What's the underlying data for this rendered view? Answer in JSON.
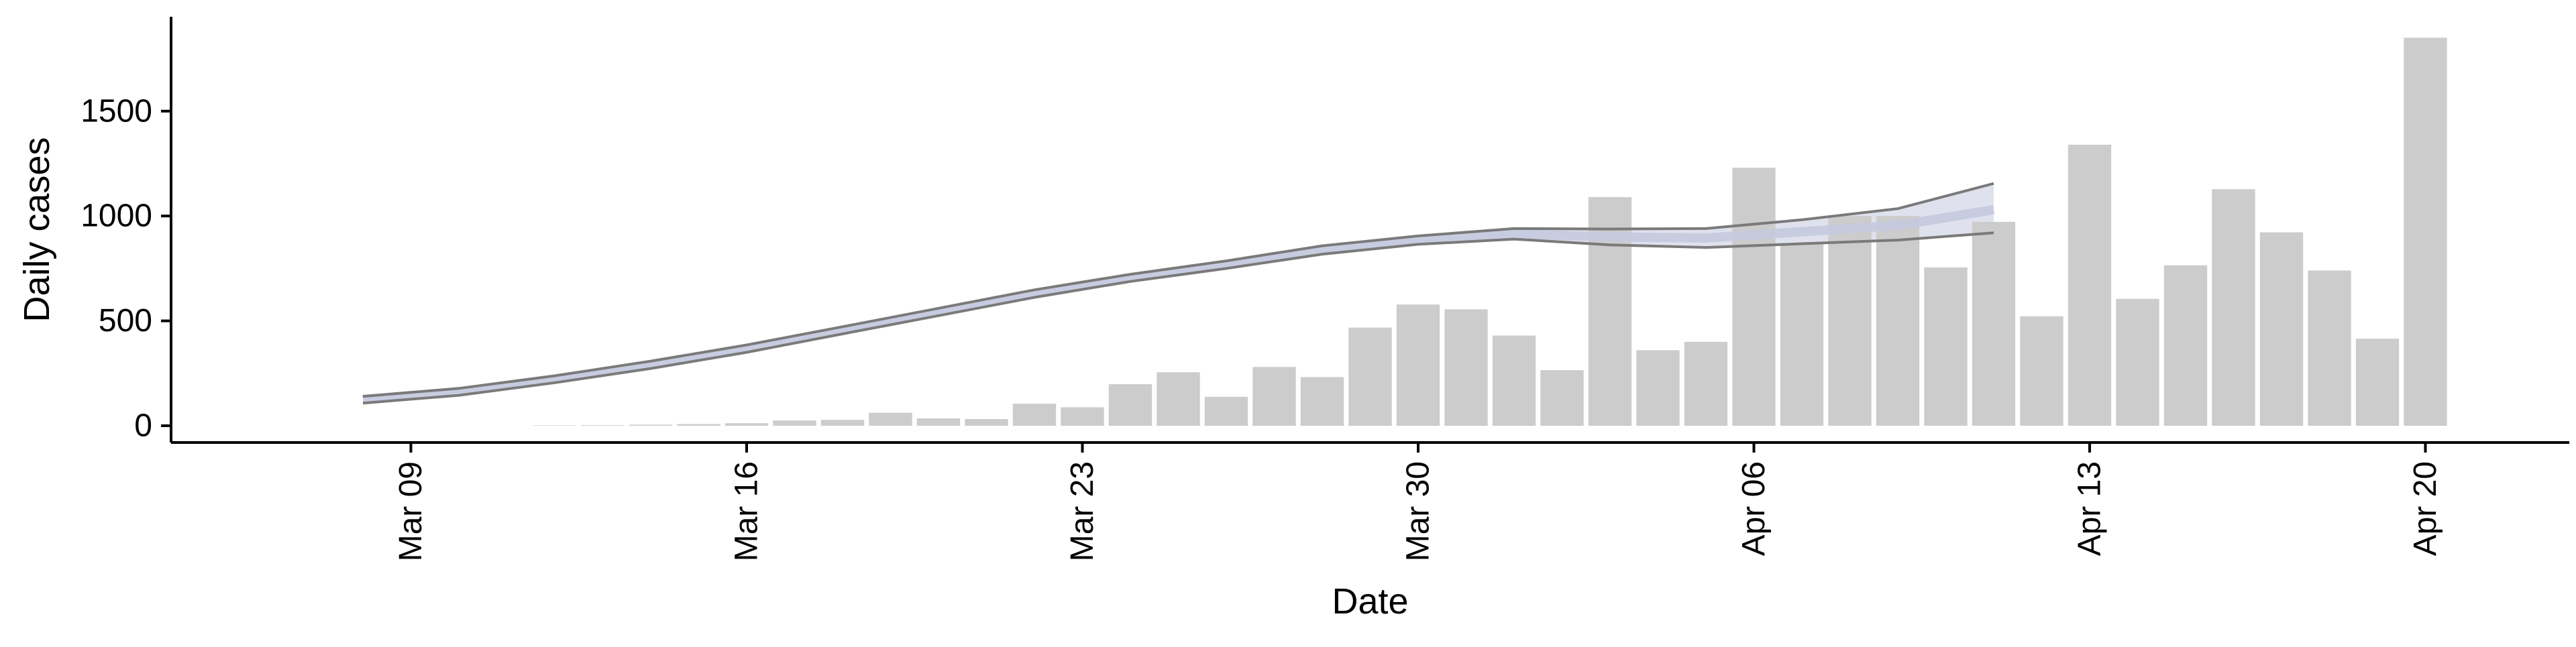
{
  "chart_data": {
    "type": "bar",
    "xlabel": "Date",
    "ylabel": "Daily cases",
    "x_axis": {
      "type": "date",
      "range": [
        "2020-03-04",
        "2020-04-23"
      ],
      "ticks": [
        {
          "date": "2020-03-09",
          "label": "Mar 09"
        },
        {
          "date": "2020-03-16",
          "label": "Mar 16"
        },
        {
          "date": "2020-03-23",
          "label": "Mar 23"
        },
        {
          "date": "2020-03-30",
          "label": "Mar 30"
        },
        {
          "date": "2020-04-06",
          "label": "Apr 06"
        },
        {
          "date": "2020-04-13",
          "label": "Apr 13"
        },
        {
          "date": "2020-04-20",
          "label": "Apr 20"
        }
      ]
    },
    "y_axis": {
      "range": [
        -80,
        1950
      ],
      "ticks": [
        {
          "value": 0,
          "label": "0"
        },
        {
          "value": 500,
          "label": "500"
        },
        {
          "value": 1000,
          "label": "1000"
        },
        {
          "value": 1500,
          "label": "1500"
        }
      ]
    },
    "grid": false,
    "bars": {
      "color": "#cccccc",
      "data": [
        {
          "date": "2020-03-12",
          "value": 2
        },
        {
          "date": "2020-03-13",
          "value": 3
        },
        {
          "date": "2020-03-14",
          "value": 5
        },
        {
          "date": "2020-03-15",
          "value": 8
        },
        {
          "date": "2020-03-16",
          "value": 12
        },
        {
          "date": "2020-03-17",
          "value": 25
        },
        {
          "date": "2020-03-18",
          "value": 28
        },
        {
          "date": "2020-03-19",
          "value": 62
        },
        {
          "date": "2020-03-20",
          "value": 35
        },
        {
          "date": "2020-03-21",
          "value": 32
        },
        {
          "date": "2020-03-22",
          "value": 105
        },
        {
          "date": "2020-03-23",
          "value": 88
        },
        {
          "date": "2020-03-24",
          "value": 198
        },
        {
          "date": "2020-03-25",
          "value": 255
        },
        {
          "date": "2020-03-26",
          "value": 138
        },
        {
          "date": "2020-03-27",
          "value": 280
        },
        {
          "date": "2020-03-28",
          "value": 232
        },
        {
          "date": "2020-03-29",
          "value": 468
        },
        {
          "date": "2020-03-30",
          "value": 578
        },
        {
          "date": "2020-03-31",
          "value": 555
        },
        {
          "date": "2020-04-01",
          "value": 430
        },
        {
          "date": "2020-04-02",
          "value": 265
        },
        {
          "date": "2020-04-03",
          "value": 1090
        },
        {
          "date": "2020-04-04",
          "value": 360
        },
        {
          "date": "2020-04-05",
          "value": 400
        },
        {
          "date": "2020-04-06",
          "value": 1230
        },
        {
          "date": "2020-04-07",
          "value": 870
        },
        {
          "date": "2020-04-08",
          "value": 1000
        },
        {
          "date": "2020-04-09",
          "value": 1000
        },
        {
          "date": "2020-04-10",
          "value": 755
        },
        {
          "date": "2020-04-11",
          "value": 972
        },
        {
          "date": "2020-04-12",
          "value": 522
        },
        {
          "date": "2020-04-13",
          "value": 1340
        },
        {
          "date": "2020-04-14",
          "value": 605
        },
        {
          "date": "2020-04-15",
          "value": 765
        },
        {
          "date": "2020-04-16",
          "value": 1128
        },
        {
          "date": "2020-04-17",
          "value": 922
        },
        {
          "date": "2020-04-18",
          "value": 740
        },
        {
          "date": "2020-04-19",
          "value": 415
        },
        {
          "date": "2020-04-20",
          "value": 1850
        }
      ]
    },
    "trend": {
      "line_color": "#7a7a7a",
      "band_color": "#c5cade",
      "points": [
        {
          "date": "2020-03-08",
          "mid": 125,
          "lower": 108,
          "upper": 140
        },
        {
          "date": "2020-03-10",
          "mid": 162,
          "lower": 145,
          "upper": 178
        },
        {
          "date": "2020-03-12",
          "mid": 222,
          "lower": 205,
          "upper": 238
        },
        {
          "date": "2020-03-14",
          "mid": 290,
          "lower": 273,
          "upper": 308
        },
        {
          "date": "2020-03-16",
          "mid": 368,
          "lower": 350,
          "upper": 385
        },
        {
          "date": "2020-03-18",
          "mid": 455,
          "lower": 438,
          "upper": 472
        },
        {
          "date": "2020-03-20",
          "mid": 542,
          "lower": 525,
          "upper": 560
        },
        {
          "date": "2020-03-22",
          "mid": 630,
          "lower": 612,
          "upper": 648
        },
        {
          "date": "2020-03-24",
          "mid": 705,
          "lower": 688,
          "upper": 722
        },
        {
          "date": "2020-03-26",
          "mid": 768,
          "lower": 750,
          "upper": 786
        },
        {
          "date": "2020-03-28",
          "mid": 838,
          "lower": 818,
          "upper": 858
        },
        {
          "date": "2020-03-30",
          "mid": 885,
          "lower": 865,
          "upper": 905
        },
        {
          "date": "2020-04-01",
          "mid": 915,
          "lower": 890,
          "upper": 940
        },
        {
          "date": "2020-04-03",
          "mid": 900,
          "lower": 862,
          "upper": 938
        },
        {
          "date": "2020-04-05",
          "mid": 895,
          "lower": 850,
          "upper": 940
        },
        {
          "date": "2020-04-07",
          "mid": 925,
          "lower": 868,
          "upper": 982
        },
        {
          "date": "2020-04-09",
          "mid": 955,
          "lower": 885,
          "upper": 1035
        },
        {
          "date": "2020-04-11",
          "mid": 1030,
          "lower": 920,
          "upper": 1155
        }
      ]
    }
  }
}
